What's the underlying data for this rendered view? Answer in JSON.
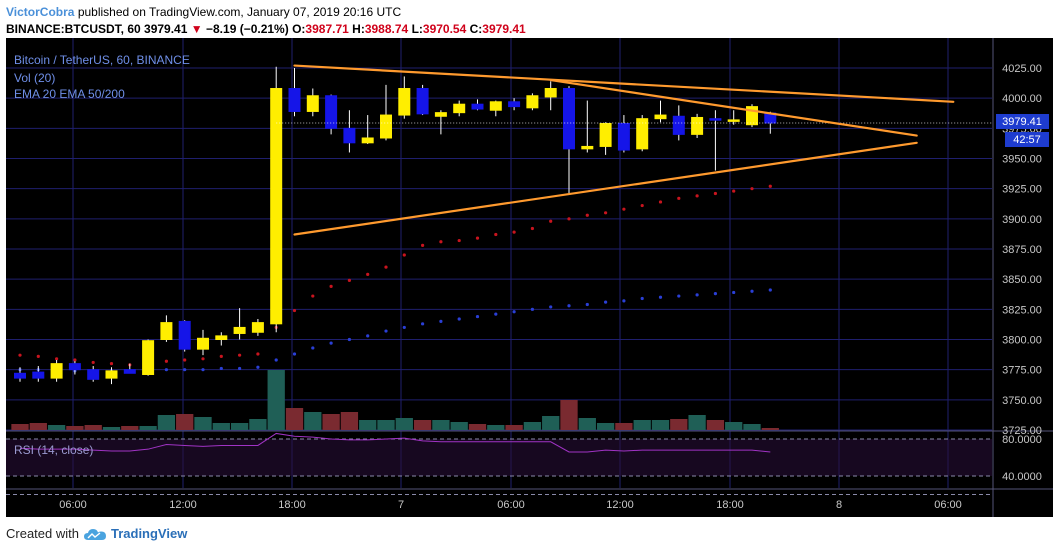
{
  "header": {
    "author": "VictorCobra",
    "published_text": "published on TradingView.com, January 07, 2019 20:16 UTC",
    "symbol": "BINANCE:BTCUSDT, 60",
    "last": "3979.41",
    "change": "−8.19 (−0.21%)",
    "o_label": "O:",
    "o": "3987.71",
    "h_label": "H:",
    "h": "3988.74",
    "l_label": "L:",
    "l": "3970.54",
    "c_label": "C:",
    "c": "3979.41"
  },
  "legend": {
    "title": "Bitcoin / TetherUS, 60, BINANCE",
    "vol": "Vol (20)",
    "ema": "EMA 20 EMA 50/200"
  },
  "price_axis": {
    "last_price_label": "3979.41",
    "countdown_label": "42:57"
  },
  "rsi": {
    "label": "RSI (14, close)",
    "ticks": [
      "80.0000",
      "40.0000"
    ]
  },
  "footer": {
    "created_with": "Created with",
    "brand": "TradingView"
  },
  "colors": {
    "background": "#000000",
    "grid": "#1f1f6e",
    "bull_body": "#ffee00",
    "bear_body": "#1515e8",
    "wick": "#ffffff",
    "vol_up": "#1f5f56",
    "vol_down": "#7a2a30",
    "ema_fast": "#c8141e",
    "ema_slow": "#2a3fd6",
    "trendline": "#ff9a2e",
    "rsi_line": "#a033c4",
    "price_label_bg": "#1e3ccf",
    "header_accent": "#4a90d9"
  },
  "chart_data": {
    "type": "candlestick",
    "interval": "60",
    "y_ticks": [
      4025,
      4000,
      3975,
      3950,
      3925,
      3900,
      3875,
      3850,
      3825,
      3800,
      3775,
      3750,
      3725
    ],
    "x_ticks": [
      "06:00",
      "12:00",
      "18:00",
      "7",
      "06:00",
      "12:00",
      "18:00",
      "8",
      "06:00"
    ],
    "candles": [
      {
        "o": 3772,
        "h": 3777,
        "l": 3765,
        "c": 3768
      },
      {
        "o": 3773,
        "h": 3778,
        "l": 3765,
        "c": 3768
      },
      {
        "o": 3768,
        "h": 3783,
        "l": 3765,
        "c": 3780
      },
      {
        "o": 3780,
        "h": 3782,
        "l": 3771,
        "c": 3775
      },
      {
        "o": 3775,
        "h": 3778,
        "l": 3765,
        "c": 3767
      },
      {
        "o": 3768,
        "h": 3777,
        "l": 3763,
        "c": 3774
      },
      {
        "o": 3775,
        "h": 3780,
        "l": 3772,
        "c": 3772
      },
      {
        "o": 3771,
        "h": 3800,
        "l": 3770,
        "c": 3799
      },
      {
        "o": 3800,
        "h": 3820,
        "l": 3798,
        "c": 3814
      },
      {
        "o": 3815,
        "h": 3816,
        "l": 3790,
        "c": 3792
      },
      {
        "o": 3792,
        "h": 3808,
        "l": 3787,
        "c": 3801
      },
      {
        "o": 3800,
        "h": 3806,
        "l": 3795,
        "c": 3803
      },
      {
        "o": 3805,
        "h": 3826,
        "l": 3800,
        "c": 3810
      },
      {
        "o": 3806,
        "h": 3817,
        "l": 3803,
        "c": 3814
      },
      {
        "o": 3813,
        "h": 4026,
        "l": 3806,
        "c": 4008
      },
      {
        "o": 4008,
        "h": 4025,
        "l": 3985,
        "c": 3989
      },
      {
        "o": 3989,
        "h": 4008,
        "l": 3985,
        "c": 4002
      },
      {
        "o": 4002,
        "h": 4003,
        "l": 3970,
        "c": 3975
      },
      {
        "o": 3975,
        "h": 3990,
        "l": 3955,
        "c": 3963
      },
      {
        "o": 3963,
        "h": 3986,
        "l": 3962,
        "c": 3967
      },
      {
        "o": 3967,
        "h": 4011,
        "l": 3965,
        "c": 3986
      },
      {
        "o": 3986,
        "h": 4018,
        "l": 3983,
        "c": 4008
      },
      {
        "o": 4008,
        "h": 4011,
        "l": 3986,
        "c": 3987
      },
      {
        "o": 3985,
        "h": 3990,
        "l": 3970,
        "c": 3988
      },
      {
        "o": 3988,
        "h": 3998,
        "l": 3985,
        "c": 3995
      },
      {
        "o": 3995,
        "h": 3999,
        "l": 3990,
        "c": 3991
      },
      {
        "o": 3990,
        "h": 3998,
        "l": 3985,
        "c": 3997
      },
      {
        "o": 3997,
        "h": 4000,
        "l": 3990,
        "c": 3993
      },
      {
        "o": 3992,
        "h": 4004,
        "l": 3990,
        "c": 4002
      },
      {
        "o": 4001,
        "h": 4014,
        "l": 3990,
        "c": 4008
      },
      {
        "o": 4008,
        "h": 4010,
        "l": 3920,
        "c": 3958
      },
      {
        "o": 3958,
        "h": 3998,
        "l": 3955,
        "c": 3960
      },
      {
        "o": 3960,
        "h": 3980,
        "l": 3953,
        "c": 3979
      },
      {
        "o": 3979,
        "h": 3986,
        "l": 3955,
        "c": 3957
      },
      {
        "o": 3958,
        "h": 3986,
        "l": 3956,
        "c": 3983
      },
      {
        "o": 3983,
        "h": 3998,
        "l": 3980,
        "c": 3986
      },
      {
        "o": 3985,
        "h": 3994,
        "l": 3965,
        "c": 3970
      },
      {
        "o": 3970,
        "h": 3987,
        "l": 3967,
        "c": 3984
      },
      {
        "o": 3983,
        "h": 3990,
        "l": 3940,
        "c": 3982
      },
      {
        "o": 3982,
        "h": 3990,
        "l": 3978,
        "c": 3982
      },
      {
        "o": 3978,
        "h": 3995,
        "l": 3976,
        "c": 3993
      },
      {
        "o": 3987.71,
        "h": 3988.74,
        "l": 3970.54,
        "c": 3979.41
      }
    ],
    "volume": [
      6,
      7,
      5,
      4,
      5,
      3,
      4,
      4,
      15,
      16,
      13,
      7,
      7,
      11,
      60,
      22,
      18,
      16,
      18,
      10,
      10,
      12,
      10,
      10,
      8,
      6,
      5,
      5,
      8,
      14,
      30,
      12,
      7,
      7,
      10,
      10,
      11,
      15,
      10,
      8,
      6,
      2
    ],
    "ema_fast": [
      3787,
      3786,
      3784,
      3783,
      3781,
      3780,
      3779,
      3780,
      3782,
      3783,
      3784,
      3786,
      3787,
      3788,
      3810,
      3824,
      3836,
      3844,
      3849,
      3854,
      3860,
      3870,
      3878,
      3881,
      3882,
      3884,
      3887,
      3889,
      3892,
      3898,
      3900,
      3903,
      3905,
      3908,
      3911,
      3914,
      3917,
      3919,
      3921,
      3923,
      3925,
      3927
    ],
    "ema_slow": [
      3775,
      3775,
      3775,
      3774,
      3774,
      3774,
      3774,
      3774,
      3775,
      3775,
      3775,
      3776,
      3776,
      3777,
      3783,
      3788,
      3793,
      3797,
      3800,
      3803,
      3807,
      3810,
      3813,
      3815,
      3817,
      3819,
      3821,
      3823,
      3825,
      3827,
      3828,
      3829,
      3831,
      3832,
      3834,
      3835,
      3836,
      3837,
      3838,
      3839,
      3840,
      3841
    ],
    "rsi_values": [
      70,
      69,
      69,
      69,
      68,
      67,
      67,
      69,
      74,
      73,
      72,
      73,
      73,
      73,
      86,
      83,
      82,
      80,
      79,
      79,
      80,
      81,
      78,
      77,
      77,
      77,
      77,
      77,
      77,
      77,
      66,
      66,
      68,
      67,
      68,
      68,
      68,
      68,
      68,
      68,
      68,
      66
    ],
    "rsi_ylim": [
      20,
      100
    ],
    "trendlines": [
      {
        "from_bar": 15,
        "from_price": 4027,
        "to_bar": 51,
        "to_price": 3997
      },
      {
        "from_bar": 29,
        "from_price": 4015,
        "to_bar": 49,
        "to_price": 3969
      },
      {
        "from_bar": 15,
        "from_price": 3887,
        "to_bar": 49,
        "to_price": 3963
      }
    ]
  }
}
